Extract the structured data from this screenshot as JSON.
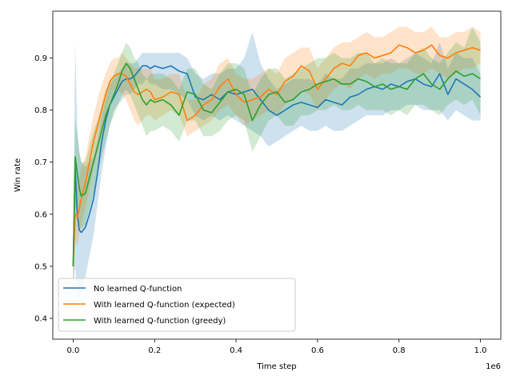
{
  "chart_data": {
    "type": "line",
    "xlabel": "Time step",
    "ylabel": "Win rate",
    "x_offset_label": "1e6",
    "x_scale": 1000000,
    "xlim": [
      -50000,
      1050000
    ],
    "ylim": [
      0.36,
      0.99
    ],
    "x_ticks": [
      0,
      200000,
      400000,
      600000,
      800000,
      1000000
    ],
    "x_tick_labels": [
      "0.0",
      "0.2",
      "0.4",
      "0.6",
      "0.8",
      "1.0"
    ],
    "y_ticks": [
      0.4,
      0.5,
      0.6,
      0.7,
      0.8,
      0.9
    ],
    "y_tick_labels": [
      "0.4",
      "0.5",
      "0.6",
      "0.7",
      "0.8",
      "0.9"
    ],
    "grid": false,
    "legend_position": "lower-left",
    "x": [
      0,
      5000,
      10000,
      15000,
      20000,
      30000,
      40000,
      50000,
      60000,
      70000,
      80000,
      90000,
      100000,
      110000,
      120000,
      130000,
      140000,
      150000,
      160000,
      170000,
      180000,
      190000,
      200000,
      220000,
      240000,
      260000,
      280000,
      300000,
      320000,
      340000,
      360000,
      380000,
      400000,
      420000,
      440000,
      460000,
      480000,
      500000,
      520000,
      540000,
      560000,
      580000,
      600000,
      620000,
      640000,
      660000,
      680000,
      700000,
      720000,
      740000,
      760000,
      780000,
      800000,
      820000,
      840000,
      860000,
      880000,
      900000,
      920000,
      940000,
      960000,
      980000,
      1000000
    ],
    "series": [
      {
        "name": "No learned Q-function",
        "color": "#1f77b4",
        "values": [
          0.5,
          0.69,
          0.6,
          0.57,
          0.565,
          0.575,
          0.6,
          0.63,
          0.68,
          0.74,
          0.78,
          0.81,
          0.825,
          0.84,
          0.855,
          0.86,
          0.86,
          0.865,
          0.875,
          0.885,
          0.885,
          0.88,
          0.885,
          0.88,
          0.885,
          0.875,
          0.87,
          0.825,
          0.82,
          0.83,
          0.82,
          0.835,
          0.83,
          0.835,
          0.84,
          0.82,
          0.8,
          0.79,
          0.8,
          0.81,
          0.815,
          0.81,
          0.805,
          0.82,
          0.815,
          0.81,
          0.825,
          0.83,
          0.84,
          0.845,
          0.84,
          0.85,
          0.845,
          0.855,
          0.86,
          0.85,
          0.845,
          0.87,
          0.83,
          0.86,
          0.85,
          0.84,
          0.825
        ],
        "lower": [
          0.45,
          0.5,
          0.44,
          0.44,
          0.45,
          0.48,
          0.52,
          0.56,
          0.62,
          0.68,
          0.73,
          0.77,
          0.8,
          0.81,
          0.82,
          0.83,
          0.83,
          0.84,
          0.85,
          0.85,
          0.86,
          0.85,
          0.85,
          0.84,
          0.84,
          0.83,
          0.82,
          0.79,
          0.78,
          0.79,
          0.78,
          0.79,
          0.78,
          0.77,
          0.76,
          0.75,
          0.73,
          0.74,
          0.75,
          0.76,
          0.77,
          0.76,
          0.76,
          0.77,
          0.76,
          0.76,
          0.77,
          0.78,
          0.79,
          0.79,
          0.79,
          0.8,
          0.8,
          0.81,
          0.81,
          0.8,
          0.8,
          0.8,
          0.78,
          0.8,
          0.79,
          0.78,
          0.78
        ],
        "upper": [
          0.55,
          0.93,
          0.77,
          0.72,
          0.7,
          0.69,
          0.7,
          0.71,
          0.74,
          0.79,
          0.82,
          0.85,
          0.86,
          0.87,
          0.88,
          0.89,
          0.89,
          0.89,
          0.9,
          0.91,
          0.91,
          0.91,
          0.91,
          0.91,
          0.91,
          0.91,
          0.9,
          0.87,
          0.86,
          0.87,
          0.87,
          0.88,
          0.88,
          0.9,
          0.95,
          0.89,
          0.86,
          0.84,
          0.85,
          0.86,
          0.86,
          0.86,
          0.85,
          0.87,
          0.86,
          0.86,
          0.88,
          0.88,
          0.89,
          0.89,
          0.89,
          0.9,
          0.89,
          0.9,
          0.91,
          0.9,
          0.89,
          0.93,
          0.88,
          0.91,
          0.9,
          0.9,
          0.87
        ]
      },
      {
        "name": "With learned Q-function (expected)",
        "color": "#ff7f0e",
        "values": [
          0.5,
          0.6,
          0.595,
          0.61,
          0.63,
          0.66,
          0.7,
          0.74,
          0.77,
          0.8,
          0.83,
          0.855,
          0.865,
          0.87,
          0.87,
          0.865,
          0.85,
          0.835,
          0.83,
          0.835,
          0.84,
          0.835,
          0.82,
          0.825,
          0.835,
          0.83,
          0.78,
          0.79,
          0.81,
          0.82,
          0.845,
          0.86,
          0.83,
          0.815,
          0.82,
          0.825,
          0.84,
          0.83,
          0.855,
          0.865,
          0.885,
          0.875,
          0.84,
          0.86,
          0.88,
          0.89,
          0.885,
          0.905,
          0.91,
          0.9,
          0.905,
          0.91,
          0.925,
          0.92,
          0.91,
          0.915,
          0.925,
          0.905,
          0.9,
          0.91,
          0.915,
          0.92,
          0.915
        ],
        "lower": [
          0.45,
          0.55,
          0.54,
          0.56,
          0.58,
          0.61,
          0.65,
          0.69,
          0.72,
          0.76,
          0.79,
          0.82,
          0.84,
          0.84,
          0.83,
          0.82,
          0.8,
          0.78,
          0.77,
          0.78,
          0.79,
          0.79,
          0.78,
          0.79,
          0.8,
          0.79,
          0.75,
          0.76,
          0.77,
          0.78,
          0.8,
          0.81,
          0.79,
          0.77,
          0.78,
          0.79,
          0.8,
          0.79,
          0.81,
          0.82,
          0.84,
          0.83,
          0.8,
          0.82,
          0.84,
          0.85,
          0.84,
          0.86,
          0.87,
          0.86,
          0.87,
          0.87,
          0.88,
          0.88,
          0.87,
          0.87,
          0.88,
          0.87,
          0.86,
          0.87,
          0.88,
          0.88,
          0.89
        ],
        "upper": [
          0.55,
          0.66,
          0.65,
          0.67,
          0.69,
          0.71,
          0.75,
          0.79,
          0.82,
          0.85,
          0.87,
          0.89,
          0.9,
          0.9,
          0.91,
          0.9,
          0.89,
          0.88,
          0.88,
          0.88,
          0.88,
          0.88,
          0.86,
          0.86,
          0.87,
          0.87,
          0.82,
          0.82,
          0.85,
          0.86,
          0.89,
          0.9,
          0.87,
          0.86,
          0.86,
          0.87,
          0.88,
          0.87,
          0.9,
          0.91,
          0.92,
          0.92,
          0.88,
          0.9,
          0.92,
          0.93,
          0.93,
          0.94,
          0.95,
          0.94,
          0.94,
          0.95,
          0.96,
          0.96,
          0.95,
          0.95,
          0.96,
          0.94,
          0.94,
          0.95,
          0.95,
          0.96,
          0.95
        ]
      },
      {
        "name": "With learned Q-function (greedy)",
        "color": "#2ca02c",
        "values": [
          0.5,
          0.71,
          0.68,
          0.65,
          0.635,
          0.64,
          0.67,
          0.7,
          0.73,
          0.76,
          0.79,
          0.81,
          0.83,
          0.85,
          0.875,
          0.89,
          0.88,
          0.86,
          0.84,
          0.82,
          0.81,
          0.82,
          0.815,
          0.82,
          0.81,
          0.79,
          0.835,
          0.83,
          0.8,
          0.795,
          0.815,
          0.835,
          0.84,
          0.83,
          0.78,
          0.81,
          0.83,
          0.835,
          0.815,
          0.82,
          0.835,
          0.84,
          0.85,
          0.855,
          0.86,
          0.85,
          0.85,
          0.86,
          0.855,
          0.845,
          0.85,
          0.84,
          0.845,
          0.84,
          0.86,
          0.87,
          0.85,
          0.84,
          0.86,
          0.875,
          0.865,
          0.87,
          0.86
        ],
        "lower": [
          0.45,
          0.62,
          0.6,
          0.58,
          0.57,
          0.58,
          0.61,
          0.64,
          0.68,
          0.71,
          0.74,
          0.77,
          0.79,
          0.81,
          0.83,
          0.84,
          0.83,
          0.81,
          0.79,
          0.77,
          0.75,
          0.76,
          0.76,
          0.77,
          0.76,
          0.74,
          0.78,
          0.78,
          0.75,
          0.75,
          0.76,
          0.78,
          0.79,
          0.78,
          0.72,
          0.75,
          0.78,
          0.79,
          0.77,
          0.77,
          0.79,
          0.79,
          0.8,
          0.8,
          0.81,
          0.8,
          0.8,
          0.81,
          0.8,
          0.8,
          0.8,
          0.79,
          0.8,
          0.79,
          0.81,
          0.81,
          0.8,
          0.79,
          0.81,
          0.82,
          0.81,
          0.82,
          0.79
        ],
        "upper": [
          0.55,
          0.78,
          0.75,
          0.72,
          0.7,
          0.7,
          0.73,
          0.76,
          0.78,
          0.81,
          0.84,
          0.85,
          0.87,
          0.89,
          0.91,
          0.93,
          0.92,
          0.9,
          0.89,
          0.87,
          0.86,
          0.87,
          0.87,
          0.87,
          0.86,
          0.84,
          0.88,
          0.88,
          0.85,
          0.84,
          0.87,
          0.89,
          0.89,
          0.88,
          0.83,
          0.86,
          0.88,
          0.88,
          0.86,
          0.87,
          0.88,
          0.89,
          0.9,
          0.9,
          0.91,
          0.9,
          0.9,
          0.91,
          0.91,
          0.89,
          0.9,
          0.89,
          0.89,
          0.89,
          0.91,
          0.92,
          0.9,
          0.89,
          0.91,
          0.93,
          0.92,
          0.96,
          0.93
        ]
      }
    ]
  }
}
